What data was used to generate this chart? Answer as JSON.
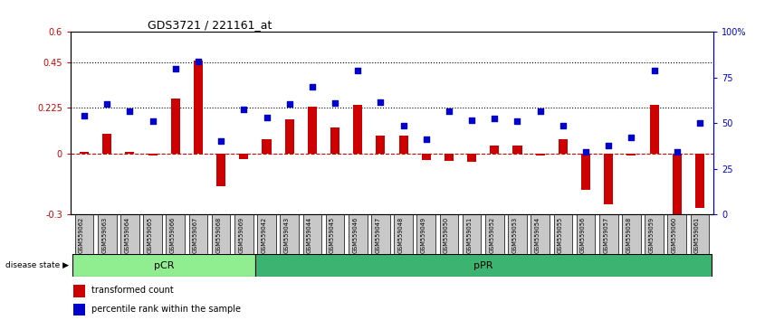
{
  "title": "GDS3721 / 221161_at",
  "samples": [
    "GSM559062",
    "GSM559063",
    "GSM559064",
    "GSM559065",
    "GSM559066",
    "GSM559067",
    "GSM559068",
    "GSM559069",
    "GSM559042",
    "GSM559043",
    "GSM559044",
    "GSM559045",
    "GSM559046",
    "GSM559047",
    "GSM559048",
    "GSM559049",
    "GSM559050",
    "GSM559051",
    "GSM559052",
    "GSM559053",
    "GSM559054",
    "GSM559055",
    "GSM559056",
    "GSM559057",
    "GSM559058",
    "GSM559059",
    "GSM559060",
    "GSM559061"
  ],
  "red_bars": [
    0.01,
    0.1,
    0.01,
    -0.01,
    0.27,
    0.46,
    -0.16,
    -0.025,
    0.07,
    0.17,
    0.23,
    0.13,
    0.24,
    0.09,
    0.09,
    -0.03,
    -0.035,
    -0.04,
    0.04,
    0.04,
    -0.01,
    0.07,
    -0.18,
    -0.25,
    -0.01,
    0.24,
    -0.31,
    -0.27
  ],
  "blue_squares": [
    0.185,
    0.245,
    0.21,
    0.16,
    0.42,
    0.455,
    0.06,
    0.22,
    0.18,
    0.245,
    0.33,
    0.25,
    0.41,
    0.255,
    0.14,
    0.07,
    0.21,
    0.165,
    0.175,
    0.16,
    0.21,
    0.14,
    0.01,
    0.04,
    0.08,
    0.41,
    0.01,
    0.15
  ],
  "pcr_count": 8,
  "ylim_left": [
    -0.3,
    0.6
  ],
  "ylim_right": [
    0,
    100
  ],
  "yticks_left": [
    -0.3,
    0.0,
    0.225,
    0.45,
    0.6
  ],
  "yticks_left_labels": [
    "-0.3",
    "0",
    "0.225",
    "0.45",
    "0.6"
  ],
  "yticks_right": [
    0,
    25,
    50,
    75,
    100
  ],
  "yticks_right_labels": [
    "0",
    "25",
    "50",
    "75",
    "100%"
  ],
  "hline_values": [
    0.225,
    0.45
  ],
  "pcr_color": "#90EE90",
  "ppr_color": "#3CB371",
  "bar_color": "#CC0000",
  "square_color": "#0000CC",
  "bg_color": "#FFFFFF",
  "cell_color": "#C8C8C8",
  "zero_line_color": "#CC0000",
  "legend_red_label": "transformed count",
  "legend_blue_label": "percentile rank within the sample",
  "disease_state_label": "disease state",
  "pcr_label": "pCR",
  "ppr_label": "pPR"
}
